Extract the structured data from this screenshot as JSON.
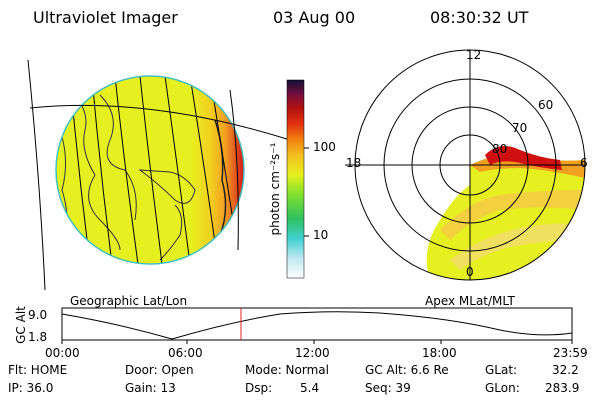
{
  "header": {
    "title": "Ultraviolet Imager",
    "date": "03 Aug 00",
    "time": "08:30:32 UT"
  },
  "colorbar": {
    "unit_label": "photon cm⁻²s⁻¹",
    "ticks": [
      "100",
      "10"
    ]
  },
  "left_panel": {
    "caption": "Geographic Lat/Lon"
  },
  "right_panel": {
    "caption": "Apex MLat/MLT",
    "mlt_labels": {
      "top": "12",
      "right": "6",
      "left": "18",
      "bottom": "0"
    },
    "mlat_labels": [
      "60",
      "70",
      "80"
    ]
  },
  "altitude_plot": {
    "ylabel": "GC Alt",
    "ytick_top": "9.0",
    "ytick_bottom": "1.8",
    "xticks": [
      "00:00",
      "06:00",
      "12:00",
      "18:00",
      "23:59"
    ]
  },
  "status": {
    "flt": "Flt: HOME",
    "ip": "IP: 36.0",
    "door": "Door: Open",
    "gain": "Gain: 13",
    "mode": "Mode: Normal",
    "dsp_label": "Dsp:",
    "dsp_value": "5.4",
    "gcalt": "GC Alt: 6.6 Re",
    "seq": "Seq: 39",
    "glat_label": "GLat:",
    "glat_value": "32.2",
    "glon_label": "GLon:",
    "glon_value": "283.9"
  },
  "colors": {
    "background": "#ffffff",
    "low_yellow": "#e6f020",
    "mid_orange": "#f2a020",
    "high_red": "#d01010",
    "cursor_red": "#e02020"
  }
}
